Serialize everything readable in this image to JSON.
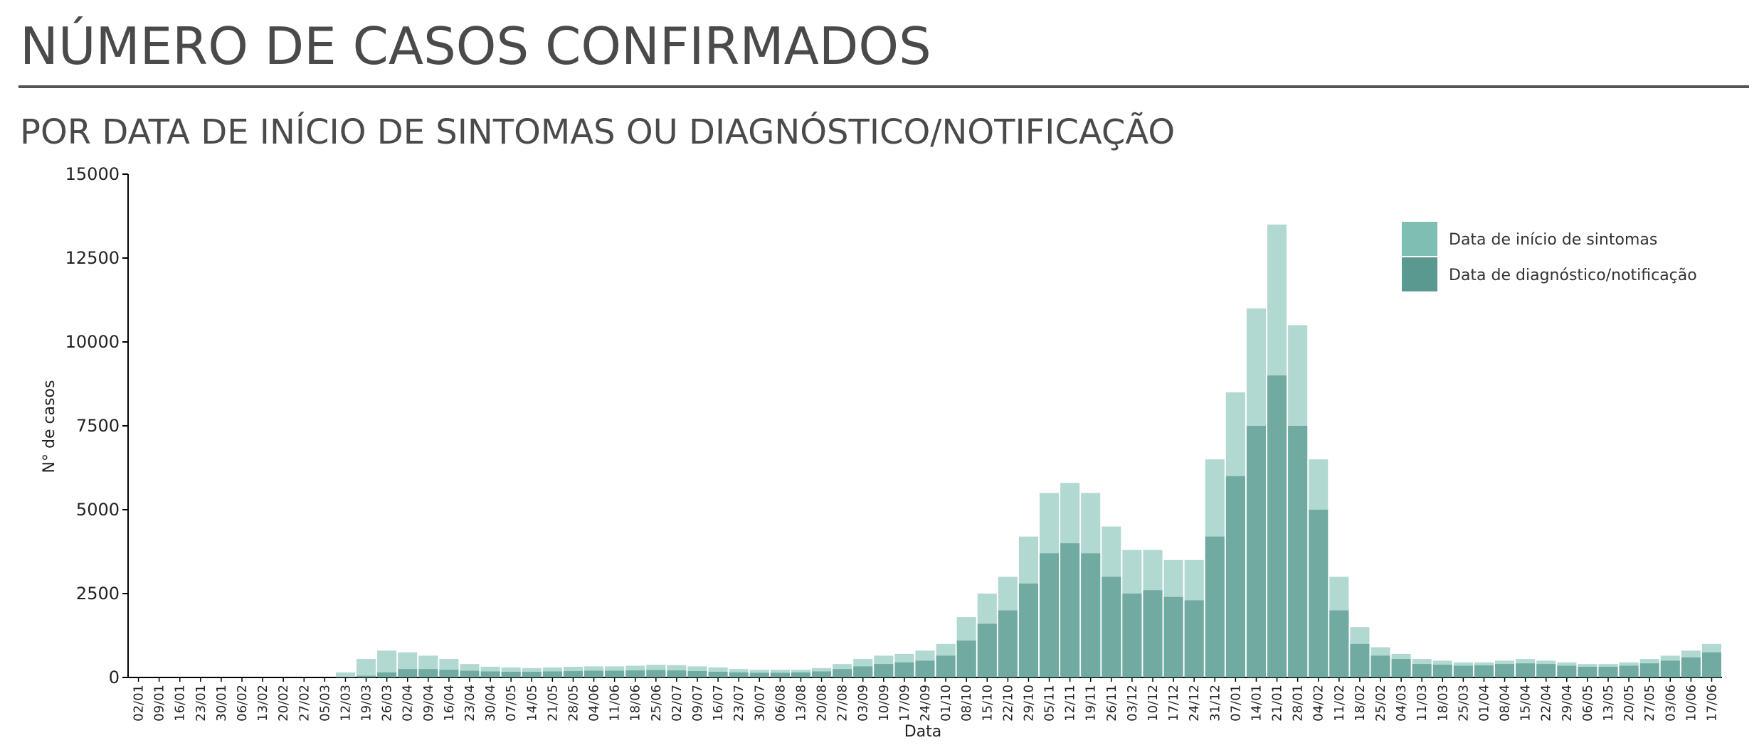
{
  "chart_data": {
    "type": "bar",
    "title": "NÚMERO DE CASOS CONFIRMADOS",
    "subtitle": "POR DATA DE INÍCIO DE SINTOMAS OU DIAGNÓSTICO/NOTIFICAÇÃO",
    "x_label": "Data",
    "y_label": "N° de casos",
    "categories": [
      "02/01",
      "09/01",
      "16/01",
      "23/01",
      "30/01",
      "06/02",
      "13/02",
      "20/02",
      "27/02",
      "05/03",
      "12/03",
      "19/03",
      "26/03",
      "02/04",
      "09/04",
      "16/04",
      "23/04",
      "30/04",
      "07/05",
      "14/05",
      "21/05",
      "28/05",
      "04/06",
      "11/06",
      "18/06",
      "25/06",
      "02/07",
      "09/07",
      "16/07",
      "23/07",
      "30/07",
      "06/08",
      "13/08",
      "20/08",
      "27/08",
      "03/09",
      "10/09",
      "17/09",
      "24/09",
      "01/10",
      "08/10",
      "15/10",
      "22/10",
      "29/10",
      "05/11",
      "12/11",
      "19/11",
      "26/11",
      "03/12",
      "10/12",
      "17/12",
      "24/12",
      "31/12",
      "07/01",
      "14/01",
      "21/01",
      "28/01",
      "04/02",
      "11/02",
      "18/02",
      "25/02",
      "04/03",
      "11/03",
      "18/03",
      "25/03",
      "01/04",
      "08/04",
      "15/04",
      "22/04",
      "29/04",
      "06/05",
      "13/05",
      "20/05",
      "27/05",
      "03/06",
      "10/06",
      "17/06"
    ],
    "series": [
      {
        "name": "Data de início de sintomas",
        "color": "#7fbfb3",
        "values": [
          0,
          0,
          0,
          0,
          0,
          0,
          0,
          0,
          0,
          0,
          150,
          550,
          800,
          750,
          650,
          550,
          400,
          320,
          300,
          280,
          300,
          320,
          330,
          330,
          350,
          380,
          370,
          330,
          300,
          250,
          230,
          230,
          230,
          280,
          400,
          550,
          650,
          700,
          800,
          1000,
          1800,
          2500,
          3000,
          4200,
          5500,
          5800,
          5500,
          4500,
          3800,
          3800,
          3500,
          3500,
          6500,
          8500,
          11000,
          13500,
          10500,
          6500,
          3000,
          1500,
          900,
          700,
          550,
          500,
          450,
          450,
          500,
          550,
          500,
          450,
          400,
          400,
          450,
          550,
          650,
          800,
          1000
        ]
      },
      {
        "name": "Data de diagnóstico/notificação",
        "color": "#5a9990",
        "values": [
          0,
          0,
          0,
          0,
          0,
          0,
          0,
          0,
          0,
          0,
          0,
          50,
          150,
          250,
          250,
          230,
          200,
          180,
          170,
          170,
          180,
          190,
          200,
          200,
          210,
          220,
          210,
          190,
          170,
          150,
          140,
          140,
          150,
          180,
          250,
          330,
          400,
          450,
          500,
          650,
          1100,
          1600,
          2000,
          2800,
          3700,
          4000,
          3700,
          3000,
          2500,
          2600,
          2400,
          2300,
          4200,
          6000,
          7500,
          9000,
          7500,
          5000,
          2000,
          1000,
          650,
          550,
          400,
          380,
          350,
          360,
          400,
          420,
          400,
          350,
          320,
          320,
          350,
          420,
          500,
          600,
          750
        ]
      }
    ],
    "ylim": [
      0,
      15000
    ],
    "yticks": [
      0,
      2500,
      5000,
      7500,
      10000,
      12500,
      15000
    ],
    "legend": "upper right"
  }
}
